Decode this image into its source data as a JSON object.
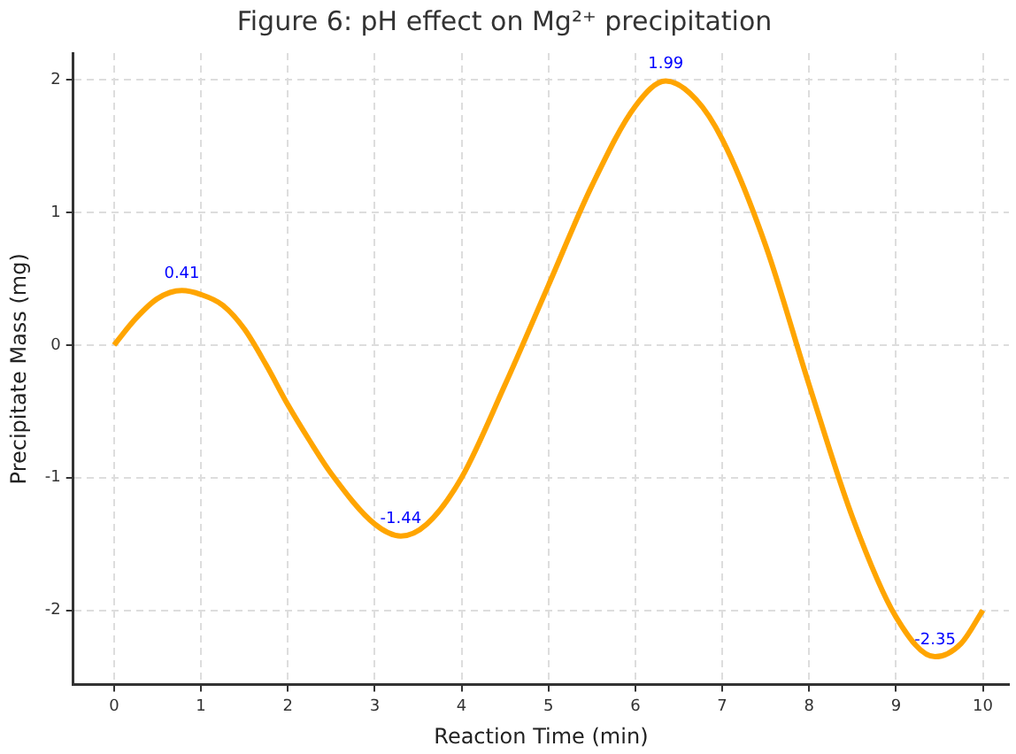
{
  "chart_data": {
    "type": "line",
    "title": "Figure 6: pH effect on Mg²⁺ precipitation",
    "xlabel": "Reaction Time (min)",
    "ylabel": "Precipitate Mass (mg)",
    "x": [
      0,
      0.25,
      0.5,
      0.78,
      1,
      1.25,
      1.5,
      1.75,
      2,
      2.25,
      2.5,
      3,
      3.3,
      3.6,
      4,
      4.5,
      5,
      5.5,
      6,
      6.35,
      6.7,
      7,
      7.5,
      8,
      8.5,
      9,
      9.45,
      9.75,
      10
    ],
    "series": [
      {
        "color": "#ffa500",
        "values": [
          0,
          0.2,
          0.35,
          0.41,
          0.38,
          0.3,
          0.12,
          -0.15,
          -0.45,
          -0.72,
          -0.97,
          -1.35,
          -1.44,
          -1.35,
          -1.0,
          -0.3,
          0.45,
          1.2,
          1.8,
          1.99,
          1.85,
          1.55,
          0.75,
          -0.3,
          -1.3,
          -2.05,
          -2.35,
          -2.25,
          -2.0
        ]
      }
    ],
    "xlim": [
      -0.47,
      10.3
    ],
    "xticks": [
      0,
      1,
      2,
      3,
      4,
      5,
      6,
      7,
      8,
      9,
      10
    ],
    "ylim": [
      -2.56,
      2.2
    ],
    "yticks": [
      -2,
      -1,
      0,
      1,
      2
    ],
    "grid": true,
    "legend": false,
    "marker": "none",
    "line_style": "solid",
    "annotations": [
      {
        "text": "0.41",
        "x": 0.78,
        "y": 0.41
      },
      {
        "text": "-1.44",
        "x": 3.3,
        "y": -1.44
      },
      {
        "text": "1.99",
        "x": 6.35,
        "y": 1.99
      },
      {
        "text": "-2.35",
        "x": 9.45,
        "y": -2.35
      }
    ]
  }
}
